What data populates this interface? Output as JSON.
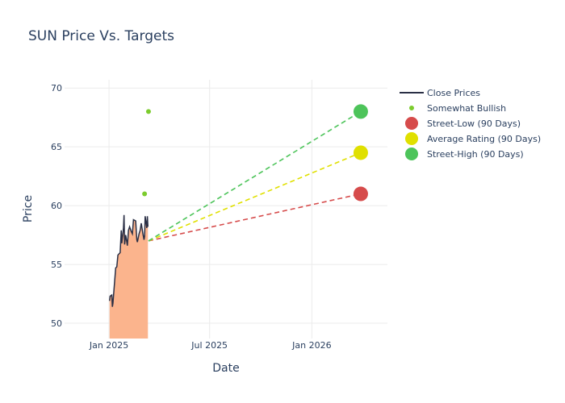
{
  "chart_data": {
    "type": "line",
    "title": "SUN Price Vs. Targets",
    "xlabel": "Date",
    "ylabel": "Price",
    "xlim": [
      "2024-10-13",
      "2026-05-17"
    ],
    "ylim": [
      48.7,
      70.7
    ],
    "x_ticks": [
      {
        "date": "2025-01-01",
        "label": "Jan 2025"
      },
      {
        "date": "2025-07-01",
        "label": "Jul 2025"
      },
      {
        "date": "2026-01-01",
        "label": "Jan 2026"
      }
    ],
    "y_ticks": [
      50,
      55,
      60,
      65,
      70
    ],
    "grid": true,
    "legend_position": "right",
    "colors": {
      "close": "#2a2f45",
      "area": "#fbb48d",
      "bullish": "#7ccc2e",
      "street_low": "#d64b4b",
      "average": "#e0e000",
      "street_high": "#4dc45a"
    },
    "series": [
      {
        "name": "Close Prices",
        "kind": "line",
        "points": [
          {
            "x": "2025-01-02",
            "y": 51.9
          },
          {
            "x": "2025-01-03",
            "y": 52.3
          },
          {
            "x": "2025-01-06",
            "y": 52.4
          },
          {
            "x": "2025-01-07",
            "y": 51.4
          },
          {
            "x": "2025-01-08",
            "y": 51.7
          },
          {
            "x": "2025-01-10",
            "y": 52.9
          },
          {
            "x": "2025-01-13",
            "y": 54.7
          },
          {
            "x": "2025-01-15",
            "y": 54.8
          },
          {
            "x": "2025-01-17",
            "y": 55.8
          },
          {
            "x": "2025-01-21",
            "y": 56.0
          },
          {
            "x": "2025-01-23",
            "y": 57.9
          },
          {
            "x": "2025-01-24",
            "y": 56.8
          },
          {
            "x": "2025-01-27",
            "y": 58.1
          },
          {
            "x": "2025-01-28",
            "y": 59.2
          },
          {
            "x": "2025-01-29",
            "y": 56.7
          },
          {
            "x": "2025-01-31",
            "y": 57.5
          },
          {
            "x": "2025-02-03",
            "y": 56.6
          },
          {
            "x": "2025-02-05",
            "y": 57.9
          },
          {
            "x": "2025-02-07",
            "y": 58.2
          },
          {
            "x": "2025-02-10",
            "y": 57.8
          },
          {
            "x": "2025-02-12",
            "y": 57.6
          },
          {
            "x": "2025-02-14",
            "y": 58.8
          },
          {
            "x": "2025-02-18",
            "y": 58.7
          },
          {
            "x": "2025-02-20",
            "y": 57.1
          },
          {
            "x": "2025-02-21",
            "y": 56.9
          },
          {
            "x": "2025-02-24",
            "y": 57.6
          },
          {
            "x": "2025-02-26",
            "y": 57.9
          },
          {
            "x": "2025-02-28",
            "y": 58.5
          },
          {
            "x": "2025-03-03",
            "y": 57.6
          },
          {
            "x": "2025-03-05",
            "y": 57.1
          },
          {
            "x": "2025-03-06",
            "y": 57.4
          },
          {
            "x": "2025-03-07",
            "y": 59.1
          },
          {
            "x": "2025-03-10",
            "y": 58.1
          },
          {
            "x": "2025-03-11",
            "y": 59.1
          },
          {
            "x": "2025-03-12",
            "y": 58.2
          }
        ]
      },
      {
        "name": "Somewhat Bullish",
        "kind": "points",
        "points": [
          {
            "x": "2025-03-06",
            "y": 61.0
          },
          {
            "x": "2025-03-13",
            "y": 68.0
          }
        ]
      },
      {
        "name": "Street-Low (90 Days)",
        "kind": "target",
        "from": {
          "x": "2025-03-13",
          "y": 57.0
        },
        "to": {
          "x": "2026-03-30",
          "y": 61.0
        }
      },
      {
        "name": "Average Rating (90 Days)",
        "kind": "target",
        "from": {
          "x": "2025-03-13",
          "y": 57.0
        },
        "to": {
          "x": "2026-03-30",
          "y": 64.5
        }
      },
      {
        "name": "Street-High (90 Days)",
        "kind": "target",
        "from": {
          "x": "2025-03-13",
          "y": 57.0
        },
        "to": {
          "x": "2026-03-30",
          "y": 68.0
        }
      }
    ]
  }
}
